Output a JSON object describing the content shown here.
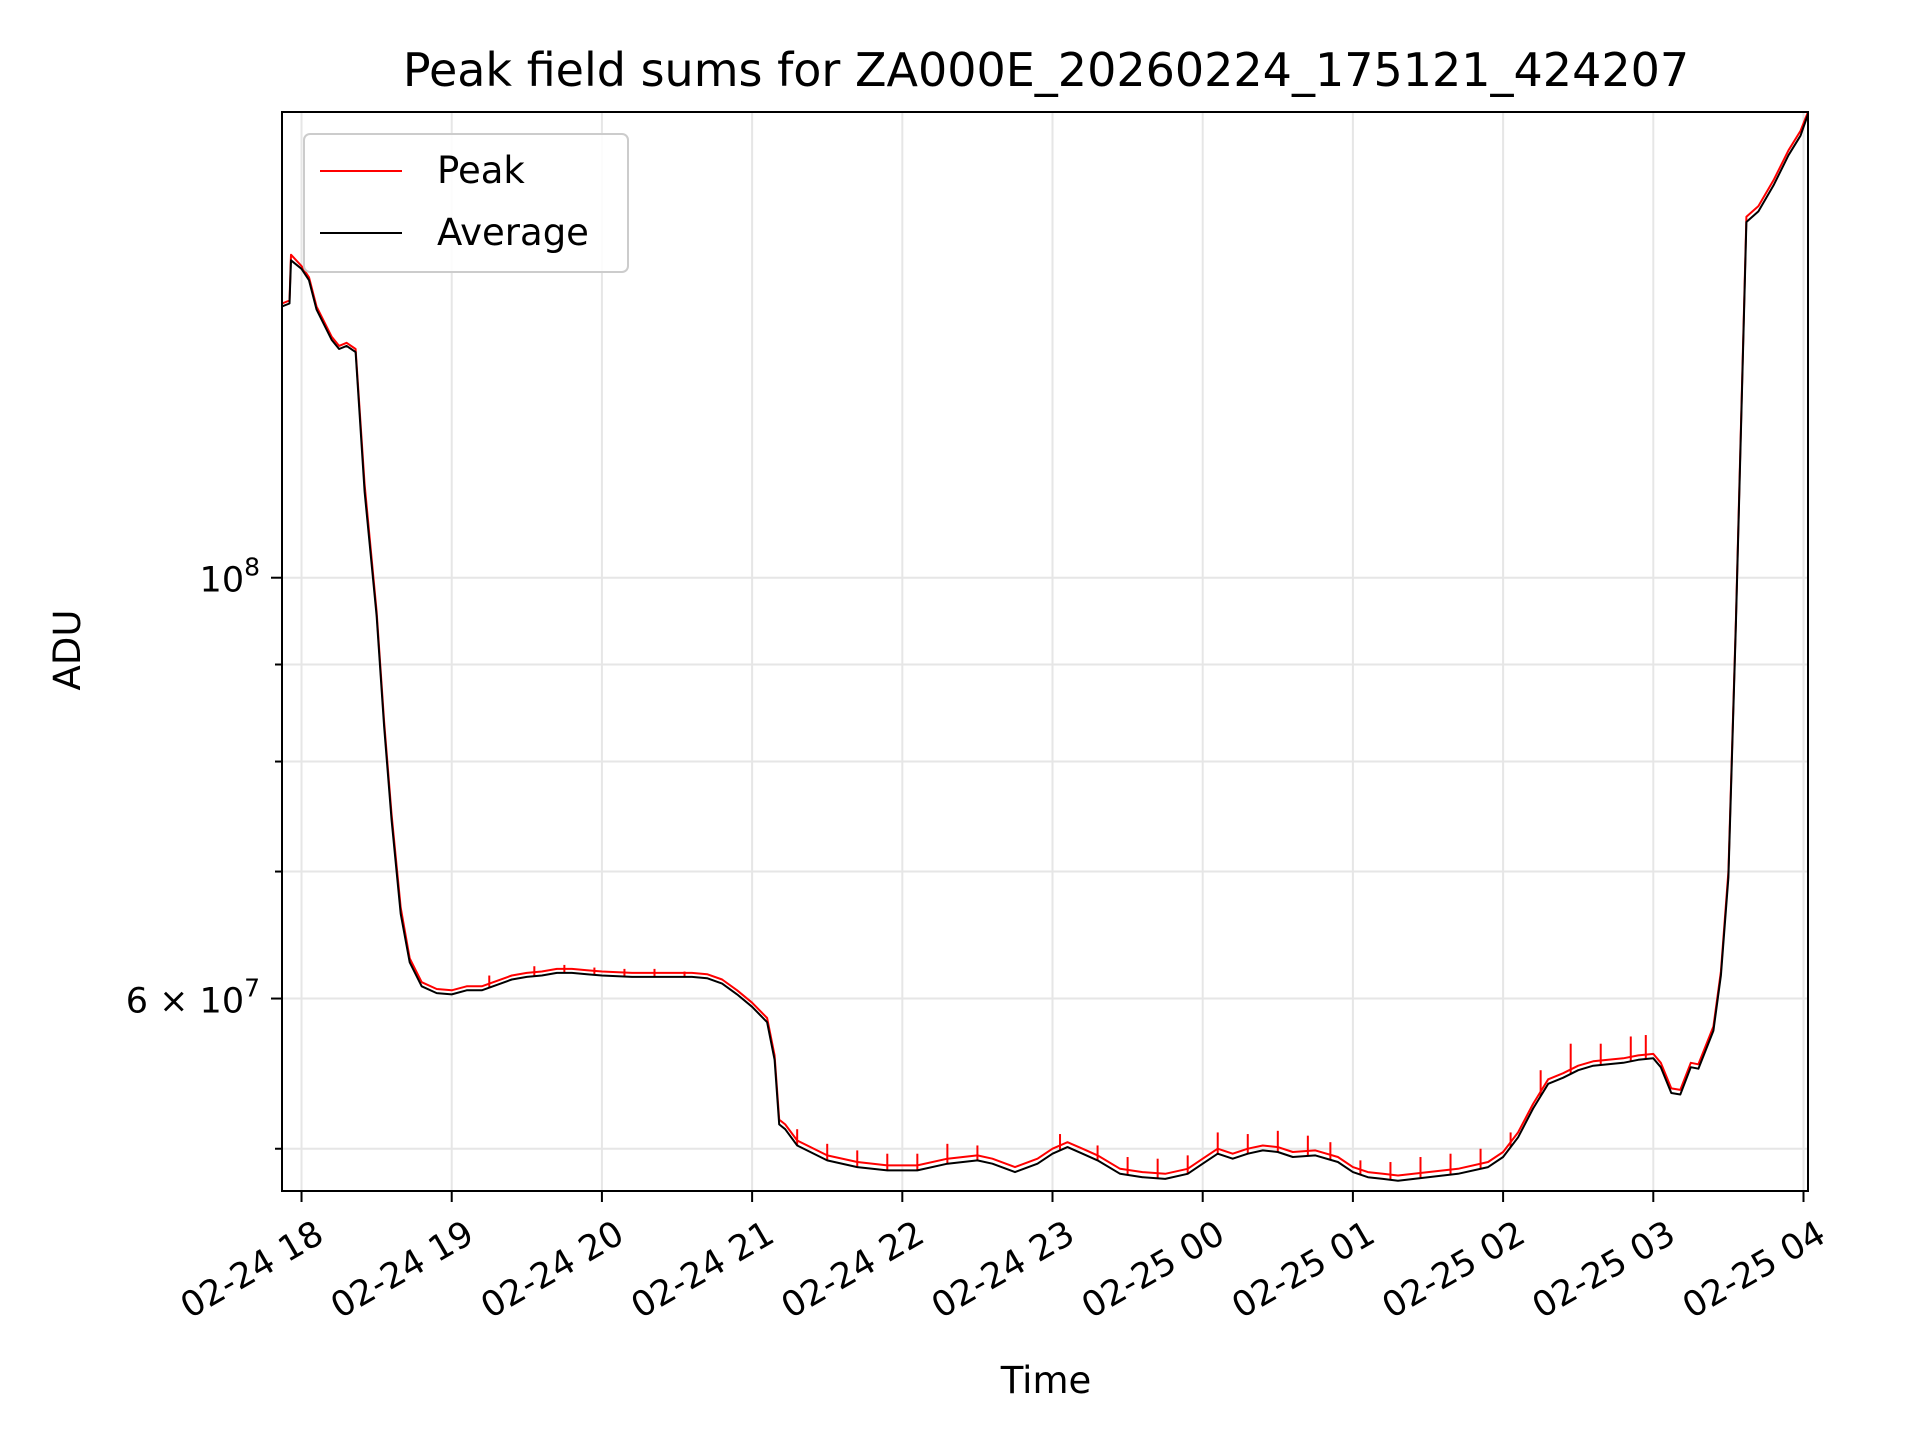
{
  "chart_data": {
    "type": "line",
    "title": "Peak field sums for ZA000E_20260224_175121_424207",
    "xlabel": "Time",
    "ylabel": "ADU",
    "y_scale": "log",
    "grid": true,
    "legend_position": "upper-left",
    "x_range_hours": [
      -0.13,
      10.03
    ],
    "ylim": [
      47500000,
      176000000
    ],
    "x_tick_labels": [
      "02-24 18",
      "02-24 19",
      "02-24 20",
      "02-24 21",
      "02-24 22",
      "02-24 23",
      "02-25 00",
      "02-25 01",
      "02-25 02",
      "02-25 03",
      "02-25 04"
    ],
    "x_tick_hours": [
      0,
      1,
      2,
      3,
      4,
      5,
      6,
      7,
      8,
      9,
      10
    ],
    "y_labeled_ticks": [
      {
        "value": 100000000,
        "base": "10",
        "exp": "8"
      },
      {
        "value": 60000000,
        "base": "6 × 10",
        "exp": "7"
      }
    ],
    "y_minor_ticks": [
      50000000,
      70000000,
      80000000,
      90000000
    ],
    "series": [
      {
        "name": "Peak",
        "color": "#ff0000",
        "points": [
          [
            -0.13,
            139500000
          ],
          [
            -0.08,
            140000000
          ],
          [
            -0.07,
            148000000
          ],
          [
            0.0,
            146000000
          ],
          [
            0.05,
            144000000
          ],
          [
            0.1,
            139000000
          ],
          [
            0.2,
            134000000
          ],
          [
            0.25,
            132500000
          ],
          [
            0.3,
            133000000
          ],
          [
            0.36,
            132000000
          ],
          [
            0.42,
            112000000
          ],
          [
            0.5,
            96000000
          ],
          [
            0.55,
            84000000
          ],
          [
            0.6,
            75000000
          ],
          [
            0.66,
            67000000
          ],
          [
            0.72,
            63000000
          ],
          [
            0.8,
            61200000
          ],
          [
            0.9,
            60700000
          ],
          [
            1.0,
            60600000
          ],
          [
            1.1,
            60900000
          ],
          [
            1.2,
            60900000
          ],
          [
            1.3,
            61300000
          ],
          [
            1.4,
            61700000
          ],
          [
            1.5,
            61900000
          ],
          [
            1.6,
            62000000
          ],
          [
            1.7,
            62200000
          ],
          [
            1.8,
            62200000
          ],
          [
            1.9,
            62100000
          ],
          [
            2.0,
            62000000
          ],
          [
            2.2,
            61900000
          ],
          [
            2.4,
            61900000
          ],
          [
            2.6,
            61900000
          ],
          [
            2.7,
            61800000
          ],
          [
            2.8,
            61400000
          ],
          [
            2.9,
            60600000
          ],
          [
            3.0,
            59700000
          ],
          [
            3.1,
            58600000
          ],
          [
            3.15,
            56000000
          ],
          [
            3.18,
            51800000
          ],
          [
            3.22,
            51500000
          ],
          [
            3.3,
            50500000
          ],
          [
            3.5,
            49600000
          ],
          [
            3.7,
            49200000
          ],
          [
            3.9,
            49000000
          ],
          [
            4.1,
            49000000
          ],
          [
            4.3,
            49400000
          ],
          [
            4.5,
            49600000
          ],
          [
            4.6,
            49400000
          ],
          [
            4.75,
            48900000
          ],
          [
            4.9,
            49400000
          ],
          [
            5.0,
            50000000
          ],
          [
            5.1,
            50400000
          ],
          [
            5.2,
            50000000
          ],
          [
            5.3,
            49600000
          ],
          [
            5.45,
            48800000
          ],
          [
            5.6,
            48600000
          ],
          [
            5.75,
            48500000
          ],
          [
            5.9,
            48800000
          ],
          [
            6.0,
            49400000
          ],
          [
            6.1,
            50000000
          ],
          [
            6.2,
            49700000
          ],
          [
            6.3,
            50000000
          ],
          [
            6.4,
            50200000
          ],
          [
            6.5,
            50100000
          ],
          [
            6.6,
            49800000
          ],
          [
            6.75,
            49900000
          ],
          [
            6.9,
            49500000
          ],
          [
            7.0,
            48900000
          ],
          [
            7.1,
            48600000
          ],
          [
            7.2,
            48500000
          ],
          [
            7.3,
            48400000
          ],
          [
            7.5,
            48600000
          ],
          [
            7.7,
            48800000
          ],
          [
            7.9,
            49200000
          ],
          [
            8.0,
            49800000
          ],
          [
            8.1,
            51000000
          ],
          [
            8.2,
            52800000
          ],
          [
            8.3,
            54400000
          ],
          [
            8.4,
            54800000
          ],
          [
            8.5,
            55300000
          ],
          [
            8.6,
            55600000
          ],
          [
            8.7,
            55700000
          ],
          [
            8.8,
            55800000
          ],
          [
            8.9,
            56000000
          ],
          [
            9.0,
            56100000
          ],
          [
            9.05,
            55500000
          ],
          [
            9.12,
            53800000
          ],
          [
            9.18,
            53700000
          ],
          [
            9.25,
            55500000
          ],
          [
            9.3,
            55400000
          ],
          [
            9.4,
            58000000
          ],
          [
            9.45,
            62000000
          ],
          [
            9.5,
            70000000
          ],
          [
            9.55,
            95000000
          ],
          [
            9.62,
            155000000
          ],
          [
            9.7,
            157000000
          ],
          [
            9.8,
            162000000
          ],
          [
            9.9,
            168000000
          ],
          [
            9.98,
            172000000
          ],
          [
            10.03,
            176000000
          ]
        ],
        "spikes": [
          [
            1.25,
            61700000
          ],
          [
            1.55,
            62400000
          ],
          [
            1.75,
            62500000
          ],
          [
            1.95,
            62300000
          ],
          [
            2.15,
            62200000
          ],
          [
            2.35,
            62200000
          ],
          [
            2.55,
            62000000
          ],
          [
            3.3,
            51200000
          ],
          [
            3.5,
            50300000
          ],
          [
            3.7,
            49900000
          ],
          [
            3.9,
            49700000
          ],
          [
            4.1,
            49700000
          ],
          [
            4.3,
            50300000
          ],
          [
            4.5,
            50200000
          ],
          [
            5.05,
            50900000
          ],
          [
            5.3,
            50200000
          ],
          [
            5.5,
            49500000
          ],
          [
            5.7,
            49400000
          ],
          [
            5.9,
            49600000
          ],
          [
            6.1,
            51000000
          ],
          [
            6.3,
            50900000
          ],
          [
            6.5,
            51100000
          ],
          [
            6.7,
            50800000
          ],
          [
            6.85,
            50400000
          ],
          [
            7.05,
            49300000
          ],
          [
            7.25,
            49200000
          ],
          [
            7.45,
            49500000
          ],
          [
            7.65,
            49700000
          ],
          [
            7.85,
            50000000
          ],
          [
            8.05,
            51000000
          ],
          [
            8.25,
            55000000
          ],
          [
            8.45,
            56800000
          ],
          [
            8.65,
            56800000
          ],
          [
            8.85,
            57300000
          ],
          [
            8.95,
            57400000
          ]
        ]
      },
      {
        "name": "Average",
        "color": "#000000",
        "points": [
          [
            -0.13,
            139000000
          ],
          [
            -0.08,
            139500000
          ],
          [
            -0.07,
            147000000
          ],
          [
            0.0,
            145500000
          ],
          [
            0.05,
            143500000
          ],
          [
            0.1,
            138500000
          ],
          [
            0.2,
            133500000
          ],
          [
            0.25,
            132000000
          ],
          [
            0.3,
            132500000
          ],
          [
            0.36,
            131500000
          ],
          [
            0.42,
            111000000
          ],
          [
            0.5,
            95500000
          ],
          [
            0.55,
            83500000
          ],
          [
            0.6,
            74500000
          ],
          [
            0.66,
            66500000
          ],
          [
            0.72,
            62700000
          ],
          [
            0.8,
            60900000
          ],
          [
            0.9,
            60400000
          ],
          [
            1.0,
            60300000
          ],
          [
            1.1,
            60600000
          ],
          [
            1.2,
            60600000
          ],
          [
            1.3,
            61000000
          ],
          [
            1.4,
            61400000
          ],
          [
            1.5,
            61600000
          ],
          [
            1.6,
            61700000
          ],
          [
            1.7,
            61900000
          ],
          [
            1.8,
            61900000
          ],
          [
            1.9,
            61800000
          ],
          [
            2.0,
            61700000
          ],
          [
            2.2,
            61600000
          ],
          [
            2.4,
            61600000
          ],
          [
            2.6,
            61600000
          ],
          [
            2.7,
            61500000
          ],
          [
            2.8,
            61100000
          ],
          [
            2.9,
            60300000
          ],
          [
            3.0,
            59400000
          ],
          [
            3.1,
            58300000
          ],
          [
            3.15,
            55700000
          ],
          [
            3.18,
            51500000
          ],
          [
            3.22,
            51200000
          ],
          [
            3.3,
            50200000
          ],
          [
            3.5,
            49300000
          ],
          [
            3.7,
            48900000
          ],
          [
            3.9,
            48700000
          ],
          [
            4.1,
            48700000
          ],
          [
            4.3,
            49100000
          ],
          [
            4.5,
            49300000
          ],
          [
            4.6,
            49100000
          ],
          [
            4.75,
            48600000
          ],
          [
            4.9,
            49100000
          ],
          [
            5.0,
            49700000
          ],
          [
            5.1,
            50100000
          ],
          [
            5.2,
            49700000
          ],
          [
            5.3,
            49300000
          ],
          [
            5.45,
            48500000
          ],
          [
            5.6,
            48300000
          ],
          [
            5.75,
            48200000
          ],
          [
            5.9,
            48500000
          ],
          [
            6.0,
            49100000
          ],
          [
            6.1,
            49700000
          ],
          [
            6.2,
            49400000
          ],
          [
            6.3,
            49700000
          ],
          [
            6.4,
            49900000
          ],
          [
            6.5,
            49800000
          ],
          [
            6.6,
            49500000
          ],
          [
            6.75,
            49600000
          ],
          [
            6.9,
            49200000
          ],
          [
            7.0,
            48600000
          ],
          [
            7.1,
            48300000
          ],
          [
            7.2,
            48200000
          ],
          [
            7.3,
            48100000
          ],
          [
            7.5,
            48300000
          ],
          [
            7.7,
            48500000
          ],
          [
            7.9,
            48900000
          ],
          [
            8.0,
            49500000
          ],
          [
            8.1,
            50700000
          ],
          [
            8.2,
            52500000
          ],
          [
            8.3,
            54100000
          ],
          [
            8.4,
            54500000
          ],
          [
            8.5,
            55000000
          ],
          [
            8.6,
            55300000
          ],
          [
            8.7,
            55400000
          ],
          [
            8.8,
            55500000
          ],
          [
            8.9,
            55700000
          ],
          [
            9.0,
            55800000
          ],
          [
            9.05,
            55200000
          ],
          [
            9.12,
            53500000
          ],
          [
            9.18,
            53400000
          ],
          [
            9.25,
            55200000
          ],
          [
            9.3,
            55100000
          ],
          [
            9.4,
            57700000
          ],
          [
            9.45,
            61700000
          ],
          [
            9.5,
            69500000
          ],
          [
            9.55,
            94500000
          ],
          [
            9.62,
            154000000
          ],
          [
            9.7,
            156000000
          ],
          [
            9.8,
            161000000
          ],
          [
            9.9,
            167000000
          ],
          [
            9.98,
            171000000
          ],
          [
            10.03,
            175500000
          ]
        ]
      }
    ]
  }
}
